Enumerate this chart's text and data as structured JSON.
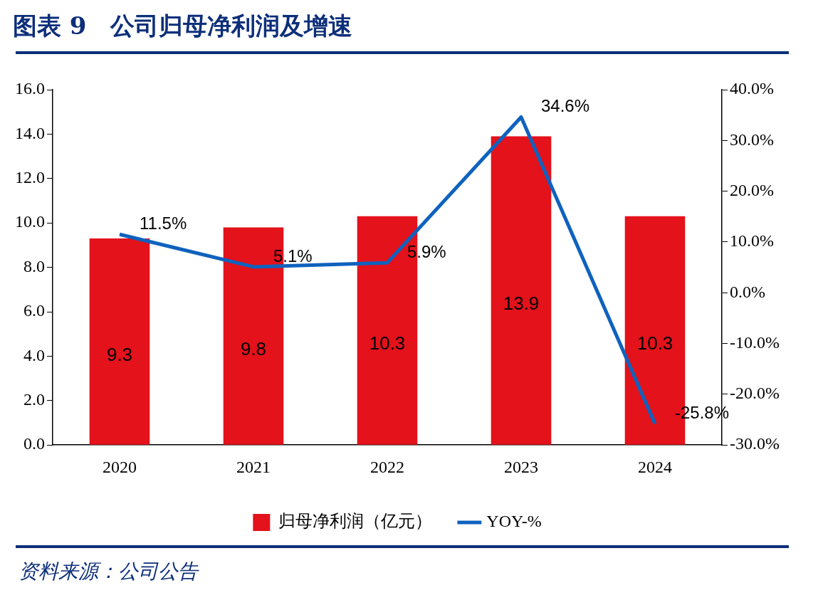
{
  "chart_data": {
    "type": "bar",
    "title": "图表 9　公司归母净利润及增速",
    "categories": [
      "2020",
      "2021",
      "2022",
      "2023",
      "2024"
    ],
    "series": [
      {
        "name": "归母净利润（亿元）",
        "color": "#e3121b",
        "values": [
          9.3,
          9.8,
          10.3,
          13.9,
          10.3
        ],
        "value_labels": [
          "9.3",
          "9.8",
          "10.3",
          "13.9",
          "10.3"
        ]
      },
      {
        "name": "YOY-%",
        "type": "line",
        "axis": "y2",
        "color": "#0f62be",
        "values": [
          11.5,
          5.1,
          5.9,
          34.6,
          -25.8
        ],
        "value_labels": [
          "11.5%",
          "5.1%",
          "5.9%",
          "34.6%",
          "-25.8%"
        ]
      }
    ],
    "ylim": [
      0,
      16
    ],
    "yticks": [
      {
        "value": 0,
        "label": "0.0"
      },
      {
        "value": 2,
        "label": "2.0"
      },
      {
        "value": 4,
        "label": "4.0"
      },
      {
        "value": 6,
        "label": "6.0"
      },
      {
        "value": 8,
        "label": "8.0"
      },
      {
        "value": 10,
        "label": "10.0"
      },
      {
        "value": 12,
        "label": "12.0"
      },
      {
        "value": 14,
        "label": "14.0"
      },
      {
        "value": 16,
        "label": "16.0"
      }
    ],
    "y2lim": [
      -30,
      40
    ],
    "y2ticks": [
      {
        "value": -30,
        "label": "-30.0%"
      },
      {
        "value": -20,
        "label": "-20.0%"
      },
      {
        "value": -10,
        "label": "-10.0%"
      },
      {
        "value": 0,
        "label": "0.0%"
      },
      {
        "value": 10,
        "label": "10.0%"
      },
      {
        "value": 20,
        "label": "20.0%"
      },
      {
        "value": 30,
        "label": "30.0%"
      },
      {
        "value": 40,
        "label": "40.0%"
      }
    ],
    "grid": false,
    "legend": "bottom",
    "marker": "none",
    "line_style": "solid",
    "annotations": [
      "资料来源：公司公告"
    ]
  }
}
